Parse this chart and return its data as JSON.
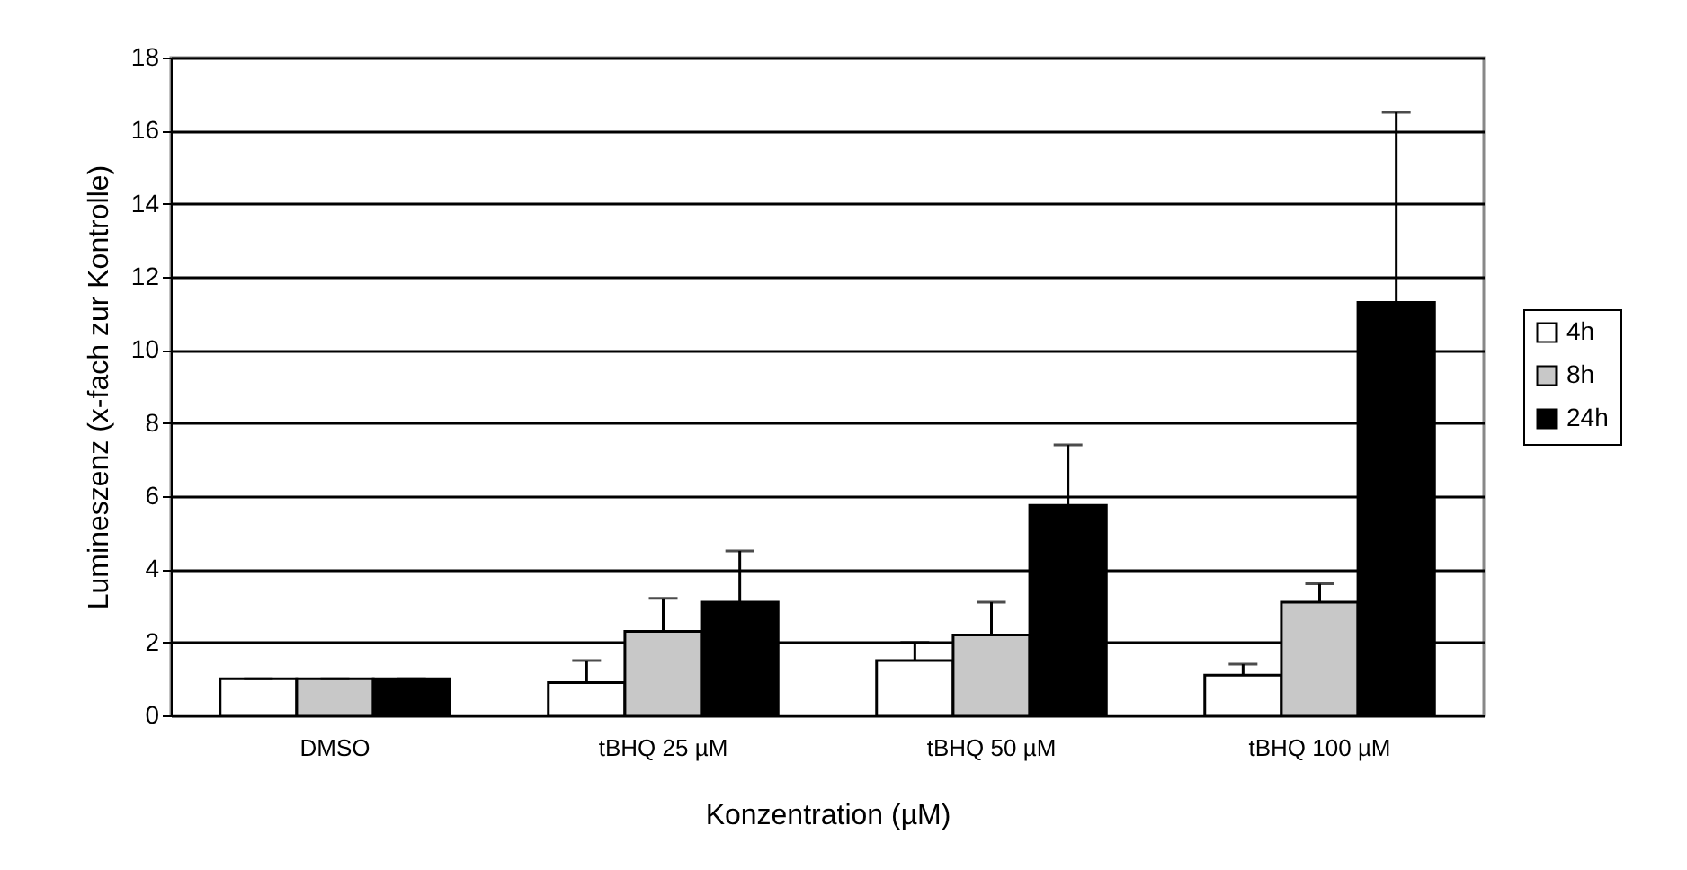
{
  "chart_data": {
    "type": "bar",
    "xlabel": "Konzentration (µM)",
    "ylabel": "Lumineszenz (x-fach zur Kontrolle)",
    "categories": [
      "DMSO",
      "tBHQ 25 µM",
      "tBHQ 50 µM",
      "tBHQ 100 µM"
    ],
    "series": [
      {
        "name": "4h",
        "color": "#ffffff",
        "values": [
          1,
          0.9,
          1.5,
          1.1
        ],
        "errors": [
          0,
          0.6,
          0.5,
          0.3
        ]
      },
      {
        "name": "8h",
        "color": "#c8c8c8",
        "values": [
          1,
          2.3,
          2.2,
          3.1
        ],
        "errors": [
          0,
          0.9,
          0.9,
          0.5
        ]
      },
      {
        "name": "24h",
        "color": "#000000",
        "values": [
          1,
          3.1,
          5.75,
          11.3
        ],
        "errors": [
          0,
          1.4,
          1.65,
          5.2
        ]
      }
    ],
    "ylim": [
      0,
      18
    ],
    "yticks": [
      0,
      2,
      4,
      6,
      8,
      10,
      12,
      14,
      16,
      18
    ],
    "grid": "y",
    "legend": "right"
  }
}
